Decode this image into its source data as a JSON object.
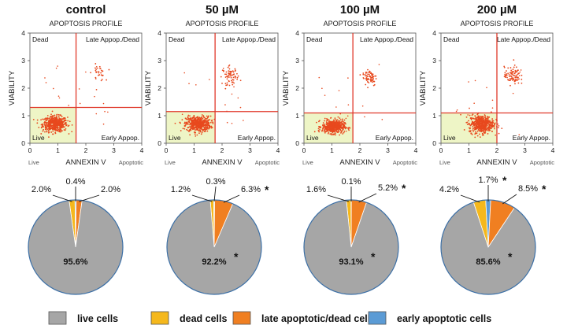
{
  "colors": {
    "live": "#a6a6a6",
    "dead": "#f5b81c",
    "late": "#f07f21",
    "early": "#5b9bd5",
    "gate": "#e0382a",
    "dots": "#e8491e",
    "live_gate_fill": "#eef5c6"
  },
  "chart_data": [
    {
      "type": "scatter",
      "condition": "control",
      "title": "APOPTOSIS PROFILE",
      "xlabel": "ANNEXIN V",
      "ylabel": "VIABILITY",
      "xlim": [
        0,
        4
      ],
      "ylim": [
        0,
        4
      ],
      "x_ticks": [
        "0",
        "1",
        "2",
        "3",
        "4"
      ],
      "y_ticks": [
        "0",
        "1",
        "2",
        "3",
        "4"
      ],
      "gate": {
        "x": 1.65,
        "y": 1.3
      },
      "quadrant_labels": {
        "top_left": "Dead",
        "top_right": "Late Appop./Dead",
        "bottom_left": "Live",
        "bottom_right": "Early Appop."
      },
      "axis_sub_labels": {
        "left": "Live",
        "right": "Apoptotic"
      },
      "clusters": [
        {
          "population": "live",
          "cx": 0.9,
          "cy": 0.7,
          "sx": 0.22,
          "sy": 0.14,
          "n": 520
        },
        {
          "population": "late",
          "cx": 2.45,
          "cy": 2.55,
          "sx": 0.12,
          "sy": 0.15,
          "n": 30
        }
      ]
    },
    {
      "type": "scatter",
      "condition": "50 µM",
      "title": "APOPTOSIS PROFILE",
      "xlabel": "ANNEXIN V",
      "ylabel": "VIABILITY",
      "xlim": [
        0,
        4
      ],
      "ylim": [
        0,
        4
      ],
      "x_ticks": [
        "0",
        "1",
        "2",
        "3",
        "4"
      ],
      "y_ticks": [
        "0",
        "1",
        "2",
        "3",
        "4"
      ],
      "gate": {
        "x": 1.75,
        "y": 1.15
      },
      "quadrant_labels": {
        "top_left": "Dead",
        "top_right": "Late Appop./Dead",
        "bottom_left": "Live",
        "bottom_right": "Early Appop."
      },
      "axis_sub_labels": {
        "left": "Live",
        "right": "Apoptotic"
      },
      "clusters": [
        {
          "population": "live",
          "cx": 1.15,
          "cy": 0.7,
          "sx": 0.22,
          "sy": 0.14,
          "n": 520
        },
        {
          "population": "late",
          "cx": 2.3,
          "cy": 2.45,
          "sx": 0.14,
          "sy": 0.16,
          "n": 70
        }
      ]
    },
    {
      "type": "scatter",
      "condition": "100 µM",
      "title": "APOPTOSIS PROFILE",
      "xlabel": "ANNEXIN V",
      "ylabel": "VIABILITY",
      "xlim": [
        0,
        4
      ],
      "ylim": [
        0,
        4
      ],
      "x_ticks": [
        "0",
        "1",
        "2",
        "3",
        "4"
      ],
      "y_ticks": [
        "0",
        "1",
        "2",
        "3",
        "4"
      ],
      "gate": {
        "x": 1.75,
        "y": 1.1
      },
      "quadrant_labels": {
        "top_left": "Dead",
        "top_right": "Late Appop./Dead",
        "bottom_left": "Live",
        "bottom_right": "Early Appop."
      },
      "axis_sub_labels": {
        "left": "Live",
        "right": "Apoptotic"
      },
      "clusters": [
        {
          "population": "live",
          "cx": 1.05,
          "cy": 0.6,
          "sx": 0.2,
          "sy": 0.12,
          "n": 520
        },
        {
          "population": "late",
          "cx": 2.35,
          "cy": 2.4,
          "sx": 0.13,
          "sy": 0.16,
          "n": 65
        }
      ]
    },
    {
      "type": "scatter",
      "condition": "200 µM",
      "title": "APOPTOSIS PROFILE",
      "xlabel": "ANNEXIN V",
      "ylabel": "VIABILITY",
      "xlim": [
        0,
        4
      ],
      "ylim": [
        0,
        4
      ],
      "x_ticks": [
        "0",
        "1",
        "2",
        "3",
        "4"
      ],
      "y_ticks": [
        "0",
        "1",
        "2",
        "3",
        "4"
      ],
      "gate": {
        "x": 2.0,
        "y": 1.1
      },
      "quadrant_labels": {
        "top_left": "Dead",
        "top_right": "Late Appop./Dead",
        "bottom_left": "Live",
        "bottom_right": "Early Appop."
      },
      "axis_sub_labels": {
        "left": "Live",
        "right": "Apoptotic"
      },
      "clusters": [
        {
          "population": "live",
          "cx": 1.45,
          "cy": 0.7,
          "sx": 0.22,
          "sy": 0.16,
          "n": 520
        },
        {
          "population": "late",
          "cx": 2.55,
          "cy": 2.45,
          "sx": 0.14,
          "sy": 0.16,
          "n": 90
        }
      ]
    },
    {
      "type": "pie",
      "condition": "control",
      "slices": [
        {
          "label": "live cells",
          "value": 95.6,
          "text": "95.6%",
          "star": false
        },
        {
          "label": "dead cells",
          "value": 2.0,
          "text": "2.0%",
          "star": false
        },
        {
          "label": "early apoptotic cells",
          "value": 0.4,
          "text": "0.4%",
          "star": false
        },
        {
          "label": "late apoptotic/dead cells",
          "value": 2.0,
          "text": "2.0%",
          "star": false
        }
      ]
    },
    {
      "type": "pie",
      "condition": "50 µM",
      "slices": [
        {
          "label": "live cells",
          "value": 92.2,
          "text": "92.2%",
          "star": true
        },
        {
          "label": "dead cells",
          "value": 1.2,
          "text": "1.2%",
          "star": false
        },
        {
          "label": "early apoptotic cells",
          "value": 0.3,
          "text": "0.3%",
          "star": false
        },
        {
          "label": "late apoptotic/dead cells",
          "value": 6.3,
          "text": "6.3%",
          "star": true
        }
      ]
    },
    {
      "type": "pie",
      "condition": "100 µM",
      "slices": [
        {
          "label": "live cells",
          "value": 93.1,
          "text": "93.1%",
          "star": true
        },
        {
          "label": "dead cells",
          "value": 1.6,
          "text": "1.6%",
          "star": false
        },
        {
          "label": "early apoptotic cells",
          "value": 0.1,
          "text": "0.1%",
          "star": false
        },
        {
          "label": "late apoptotic/dead cells",
          "value": 5.2,
          "text": "5.2%",
          "star": true
        }
      ]
    },
    {
      "type": "pie",
      "condition": "200 µM",
      "slices": [
        {
          "label": "live cells",
          "value": 85.6,
          "text": "85.6%",
          "star": true
        },
        {
          "label": "dead cells",
          "value": 4.2,
          "text": "4.2%",
          "star": false
        },
        {
          "label": "early apoptotic cells",
          "value": 1.7,
          "text": "1.7%",
          "star": true
        },
        {
          "label": "late apoptotic/dead cells",
          "value": 8.5,
          "text": "8.5%",
          "star": true
        }
      ]
    }
  ],
  "legend": [
    {
      "key": "live",
      "label": "live cells"
    },
    {
      "key": "dead",
      "label": "dead cells"
    },
    {
      "key": "late",
      "label": "late apoptotic/dead cells"
    },
    {
      "key": "early",
      "label": "early apoptotic cells"
    }
  ],
  "star_symbol": "*"
}
